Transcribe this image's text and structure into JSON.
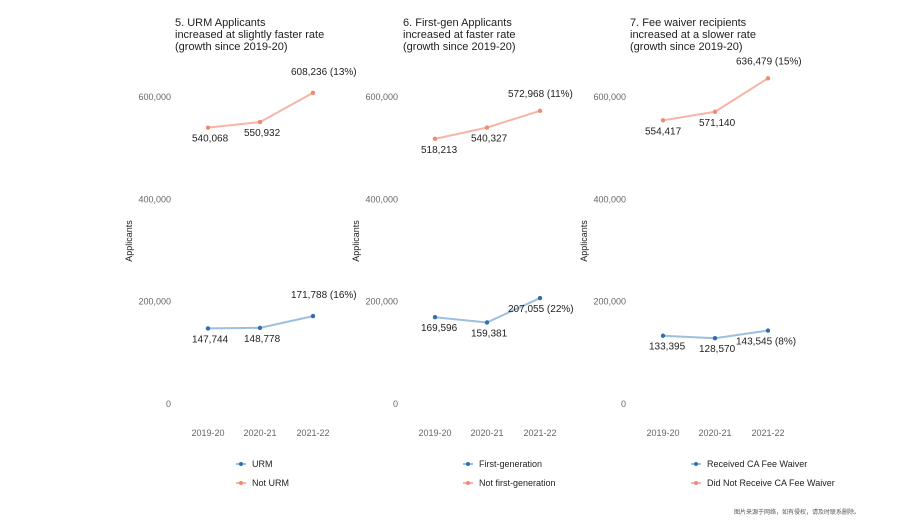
{
  "footnote": "图片来源于网络，如有侵权，请及时联系删除。",
  "colors": {
    "series_a": "#2f6fb0",
    "series_a_line": "#9cbfe0",
    "series_b": "#f08a72",
    "series_b_line": "#f6b5a6",
    "axis_text": "#666666"
  },
  "chart_data": [
    {
      "type": "line",
      "title": [
        "5. URM Applicants",
        "increased at slightly faster rate",
        "(growth since 2019-20)"
      ],
      "ylabel": "Applicants",
      "ylim": [
        0,
        600000
      ],
      "yticks": [
        0,
        200000,
        400000,
        600000
      ],
      "ytick_labels": [
        "0",
        "200,000",
        "400,000",
        "600,000"
      ],
      "categories": [
        "2019-20",
        "2020-21",
        "2021-22"
      ],
      "series": [
        {
          "name": "URM",
          "values": [
            147744,
            148778,
            171788
          ],
          "labels": [
            "147,744",
            "148,778",
            "171,788 (16%)"
          ]
        },
        {
          "name": "Not URM",
          "values": [
            540068,
            550932,
            608236
          ],
          "labels": [
            "540,068",
            "550,932",
            "608,236 (13%)"
          ]
        }
      ]
    },
    {
      "type": "line",
      "title": [
        "6. First-gen Applicants",
        "increased at faster rate",
        "(growth since 2019-20)"
      ],
      "ylabel": "Applicants",
      "ylim": [
        0,
        600000
      ],
      "yticks": [
        0,
        200000,
        400000,
        600000
      ],
      "ytick_labels": [
        "0",
        "200,000",
        "400,000",
        "600,000"
      ],
      "categories": [
        "2019-20",
        "2020-21",
        "2021-22"
      ],
      "series": [
        {
          "name": "First-generation",
          "values": [
            169596,
            159381,
            207055
          ],
          "labels": [
            "169,596",
            "159,381",
            "207,055 (22%)"
          ]
        },
        {
          "name": "Not first-generation",
          "values": [
            518213,
            540327,
            572968
          ],
          "labels": [
            "518,213",
            "540,327",
            "572,968 (11%)"
          ]
        }
      ]
    },
    {
      "type": "line",
      "title": [
        "7. Fee waiver recipients",
        "increased at a slower rate",
        "(growth since 2019-20)"
      ],
      "ylabel": "Applicants",
      "ylim": [
        0,
        600000
      ],
      "yticks": [
        0,
        200000,
        400000,
        600000
      ],
      "ytick_labels": [
        "0",
        "200,000",
        "400,000",
        "600,000"
      ],
      "categories": [
        "2019-20",
        "2020-21",
        "2021-22"
      ],
      "series": [
        {
          "name": "Received CA Fee Waiver",
          "values": [
            133395,
            128570,
            143545
          ],
          "labels": [
            "133,395",
            "128,570",
            "143,545 (8%)"
          ]
        },
        {
          "name": "Did Not Receive CA Fee Waiver",
          "values": [
            554417,
            571140,
            636479
          ],
          "labels": [
            "554,417",
            "571,140",
            "636,479 (15%)"
          ]
        }
      ]
    }
  ]
}
